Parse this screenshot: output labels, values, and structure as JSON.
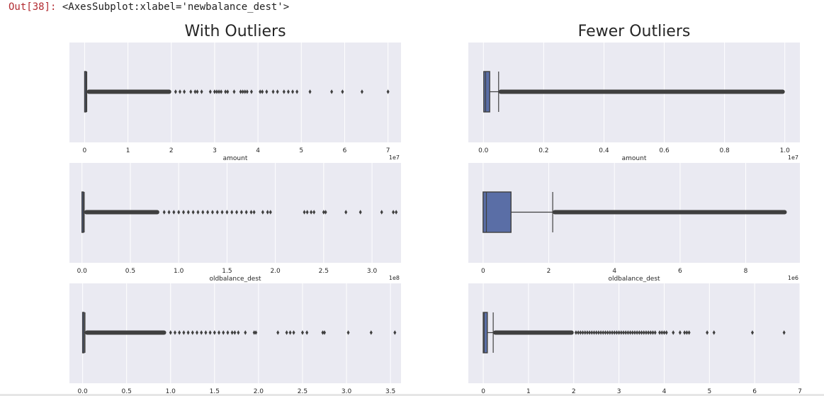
{
  "output": {
    "prompt": "Out[38]:",
    "text": "<AxesSubplot:xlabel='newbalance_dest'>"
  },
  "titles": {
    "left": "With Outliers",
    "right": "Fewer Outliers"
  },
  "colors": {
    "bg": "#eaeaf2",
    "box": "#5a6ea6",
    "line": "#3f3f3f",
    "grid": "#ffffff",
    "text": "#262626"
  },
  "chart_data": [
    {
      "type": "box",
      "panel": "left-amount",
      "xlabel": "amount",
      "multiplier": "1e7",
      "xlim": [
        -0.35,
        7.3
      ],
      "ticks": [
        0,
        1,
        2,
        3,
        4,
        5,
        6,
        7
      ],
      "tick_labels": [
        "0",
        "1",
        "2",
        "3",
        "4",
        "5",
        "6",
        "7"
      ],
      "box": {
        "q1": 0.0013,
        "median": 0.0075,
        "q3": 0.0209,
        "whisker_low": 0,
        "whisker_high": 0.05
      },
      "flier_band": [
        0.05,
        2.0
      ],
      "outliers": [
        2.1,
        2.2,
        2.3,
        2.45,
        2.55,
        2.6,
        2.7,
        2.9,
        3.0,
        3.05,
        3.1,
        3.15,
        3.25,
        3.3,
        3.45,
        3.6,
        3.65,
        3.7,
        3.75,
        3.85,
        4.05,
        4.1,
        4.2,
        4.35,
        4.45,
        4.6,
        4.7,
        4.8,
        4.9,
        5.2,
        5.7,
        5.95,
        6.4,
        7.0
      ]
    },
    {
      "type": "box",
      "panel": "left-oldbalance",
      "xlabel": "oldbalance_dest",
      "multiplier": "1e8",
      "xlim": [
        -0.13,
        3.3
      ],
      "ticks": [
        0,
        0.5,
        1.0,
        1.5,
        2.0,
        2.5,
        3.0
      ],
      "tick_labels": [
        "0.0",
        "0.5",
        "1.0",
        "1.5",
        "2.0",
        "2.5",
        "3.0"
      ],
      "box": {
        "q1": 0,
        "median": 0.0013,
        "q3": 0.0094,
        "whisker_low": 0,
        "whisker_high": 0.023
      },
      "flier_band": [
        0.023,
        0.8
      ],
      "outliers": [
        0.85,
        0.9,
        0.95,
        1.0,
        1.05,
        1.1,
        1.15,
        1.2,
        1.25,
        1.3,
        1.35,
        1.4,
        1.45,
        1.5,
        1.55,
        1.6,
        1.65,
        1.7,
        1.75,
        1.78,
        1.87,
        1.92,
        1.95,
        2.3,
        2.33,
        2.37,
        2.4,
        2.5,
        2.52,
        2.73,
        2.88,
        3.1,
        3.22,
        3.25
      ]
    },
    {
      "type": "box",
      "panel": "left-newbalance",
      "xlabel": "",
      "multiplier": "",
      "xlim": [
        -0.15,
        3.62
      ],
      "ticks": [
        0,
        0.5,
        1.0,
        1.5,
        2.0,
        2.5,
        3.0,
        3.5
      ],
      "tick_labels": [
        "0.0",
        "0.5",
        "1.0",
        "1.5",
        "2.0",
        "2.5",
        "3.0",
        "3.5"
      ],
      "box": {
        "q1": 0,
        "median": 0.0013,
        "q3": 0.0111,
        "whisker_low": 0,
        "whisker_high": 0.027
      },
      "flier_band": [
        0.027,
        0.95
      ],
      "outliers": [
        1.0,
        1.05,
        1.1,
        1.15,
        1.2,
        1.25,
        1.3,
        1.35,
        1.4,
        1.45,
        1.5,
        1.55,
        1.6,
        1.65,
        1.7,
        1.73,
        1.77,
        1.85,
        1.95,
        1.97,
        2.22,
        2.32,
        2.36,
        2.4,
        2.5,
        2.55,
        2.73,
        2.75,
        3.02,
        3.28,
        3.55
      ]
    },
    {
      "type": "box",
      "panel": "right-amount",
      "xlabel": "amount",
      "multiplier": "1e7",
      "xlim": [
        -0.05,
        1.05
      ],
      "ticks": [
        0,
        0.2,
        0.4,
        0.6,
        0.8,
        1.0
      ],
      "tick_labels": [
        "0.0",
        "0.2",
        "0.4",
        "0.6",
        "0.8",
        "1.0"
      ],
      "box": {
        "q1": 0.0013,
        "median": 0.0075,
        "q3": 0.0209,
        "whisker_low": 0,
        "whisker_high": 0.0505
      },
      "flier_band": [
        0.0505,
        1.0
      ],
      "outliers": []
    },
    {
      "type": "box",
      "panel": "right-oldbalance",
      "xlabel": "oldbalance_dest",
      "multiplier": "1e6",
      "xlim": [
        -0.45,
        9.65
      ],
      "ticks": [
        0,
        2,
        4,
        6,
        8
      ],
      "tick_labels": [
        "0",
        "2",
        "4",
        "6",
        "8"
      ],
      "box": {
        "q1": 0,
        "median": 0.1,
        "q3": 0.85,
        "whisker_low": 0,
        "whisker_high": 2.12
      },
      "flier_band": [
        2.12,
        9.25
      ],
      "outliers": []
    },
    {
      "type": "box",
      "panel": "right-newbalance",
      "xlabel": "",
      "multiplier": "",
      "xlim": [
        -0.33,
        7.0
      ],
      "ticks": [
        0,
        1,
        2,
        3,
        4,
        5,
        6,
        7
      ],
      "tick_labels": [
        "0",
        "1",
        "2",
        "3",
        "4",
        "5",
        "6",
        "7"
      ],
      "box": {
        "q1": 0,
        "median": 0.02,
        "q3": 0.09,
        "whisker_low": 0,
        "whisker_high": 0.22
      },
      "flier_band": [
        0.22,
        2.0
      ],
      "outliers": [
        2.05,
        2.1,
        2.15,
        2.2,
        2.25,
        2.3,
        2.35,
        2.4,
        2.45,
        2.5,
        2.55,
        2.6,
        2.65,
        2.7,
        2.75,
        2.8,
        2.85,
        2.9,
        2.95,
        3.0,
        3.05,
        3.1,
        3.15,
        3.2,
        3.25,
        3.3,
        3.35,
        3.4,
        3.45,
        3.5,
        3.55,
        3.6,
        3.65,
        3.7,
        3.75,
        3.8,
        3.9,
        3.95,
        4.0,
        4.05,
        4.2,
        4.35,
        4.45,
        4.5,
        4.55,
        4.95,
        5.1,
        5.95,
        6.65
      ]
    }
  ]
}
